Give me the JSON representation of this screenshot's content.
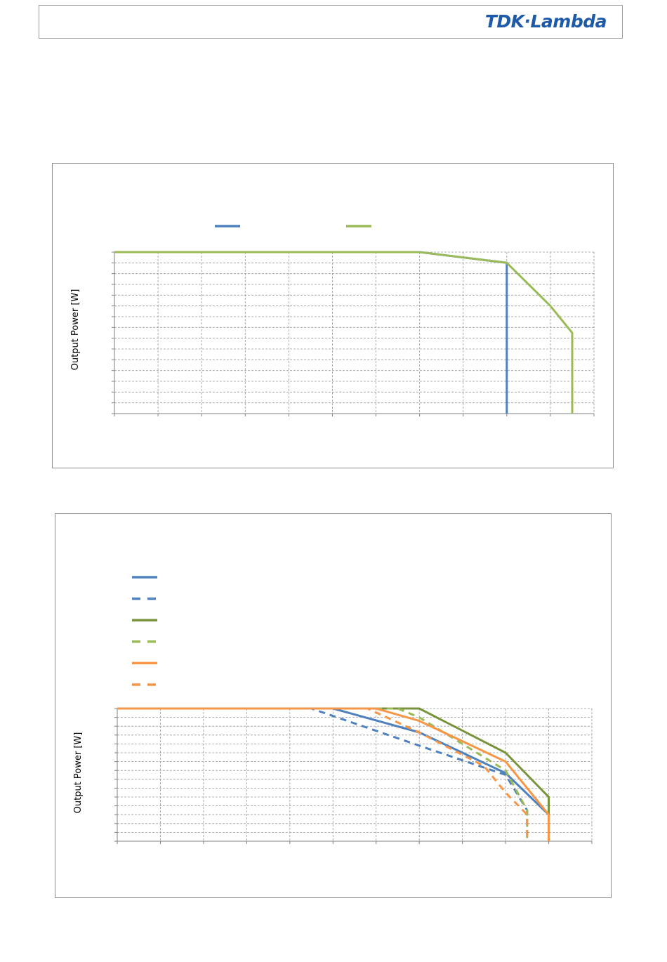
{
  "header": {
    "logo_text": "TDK·Lambda",
    "logo_color": "#1f5aa8"
  },
  "chart_data": [
    {
      "type": "line",
      "title": "",
      "xlabel": "",
      "ylabel": "Output Power [W]",
      "xlim": [
        0,
        11
      ],
      "ylim": [
        0,
        15
      ],
      "grid": true,
      "legend_position": "top",
      "series": [
        {
          "color": "#4f81bd",
          "dash": false,
          "points": [
            [
              0,
              15
            ],
            [
              7,
              15
            ],
            [
              9,
              14
            ],
            [
              9,
              0
            ]
          ]
        },
        {
          "color": "#9bbb59",
          "dash": false,
          "points": [
            [
              0,
              15
            ],
            [
              7,
              15
            ],
            [
              9,
              14
            ],
            [
              10,
              10
            ],
            [
              10.5,
              7.5
            ],
            [
              10.5,
              0
            ]
          ]
        }
      ]
    },
    {
      "type": "line",
      "title": "",
      "xlabel": "",
      "ylabel": "Output Power [W]",
      "xlim": [
        0,
        11
      ],
      "ylim": [
        0,
        15
      ],
      "grid": true,
      "legend_position": "top-left",
      "series": [
        {
          "color": "#4f81bd",
          "dash": false,
          "points": [
            [
              0,
              15
            ],
            [
              5,
              15
            ],
            [
              7,
              12.3
            ],
            [
              9,
              7.7
            ],
            [
              10,
              3
            ],
            [
              10,
              0
            ]
          ]
        },
        {
          "color": "#4f81bd",
          "dash": true,
          "points": [
            [
              0,
              15
            ],
            [
              4.5,
              15
            ],
            [
              7,
              10.8
            ],
            [
              9,
              7.5
            ],
            [
              9.5,
              3.5
            ],
            [
              9.5,
              0
            ]
          ]
        },
        {
          "color": "#77933c",
          "dash": false,
          "points": [
            [
              0,
              15
            ],
            [
              7,
              15
            ],
            [
              9,
              10
            ],
            [
              10,
              5
            ],
            [
              10,
              0
            ]
          ]
        },
        {
          "color": "#9bbb59",
          "dash": true,
          "points": [
            [
              0,
              15
            ],
            [
              6.5,
              15
            ],
            [
              7,
              14
            ],
            [
              9,
              8
            ],
            [
              9.5,
              3.5
            ],
            [
              9.5,
              0
            ]
          ]
        },
        {
          "color": "#f79646",
          "dash": false,
          "points": [
            [
              0,
              15
            ],
            [
              6,
              15
            ],
            [
              7,
              13.6
            ],
            [
              9,
              9
            ],
            [
              10,
              3
            ],
            [
              10,
              0
            ]
          ]
        },
        {
          "color": "#f79646",
          "dash": true,
          "points": [
            [
              0,
              15
            ],
            [
              5.8,
              15
            ],
            [
              7,
              12.3
            ],
            [
              8.5,
              8.5
            ],
            [
              9,
              5.5
            ],
            [
              9.5,
              3
            ],
            [
              9.5,
              0
            ]
          ]
        }
      ]
    }
  ]
}
